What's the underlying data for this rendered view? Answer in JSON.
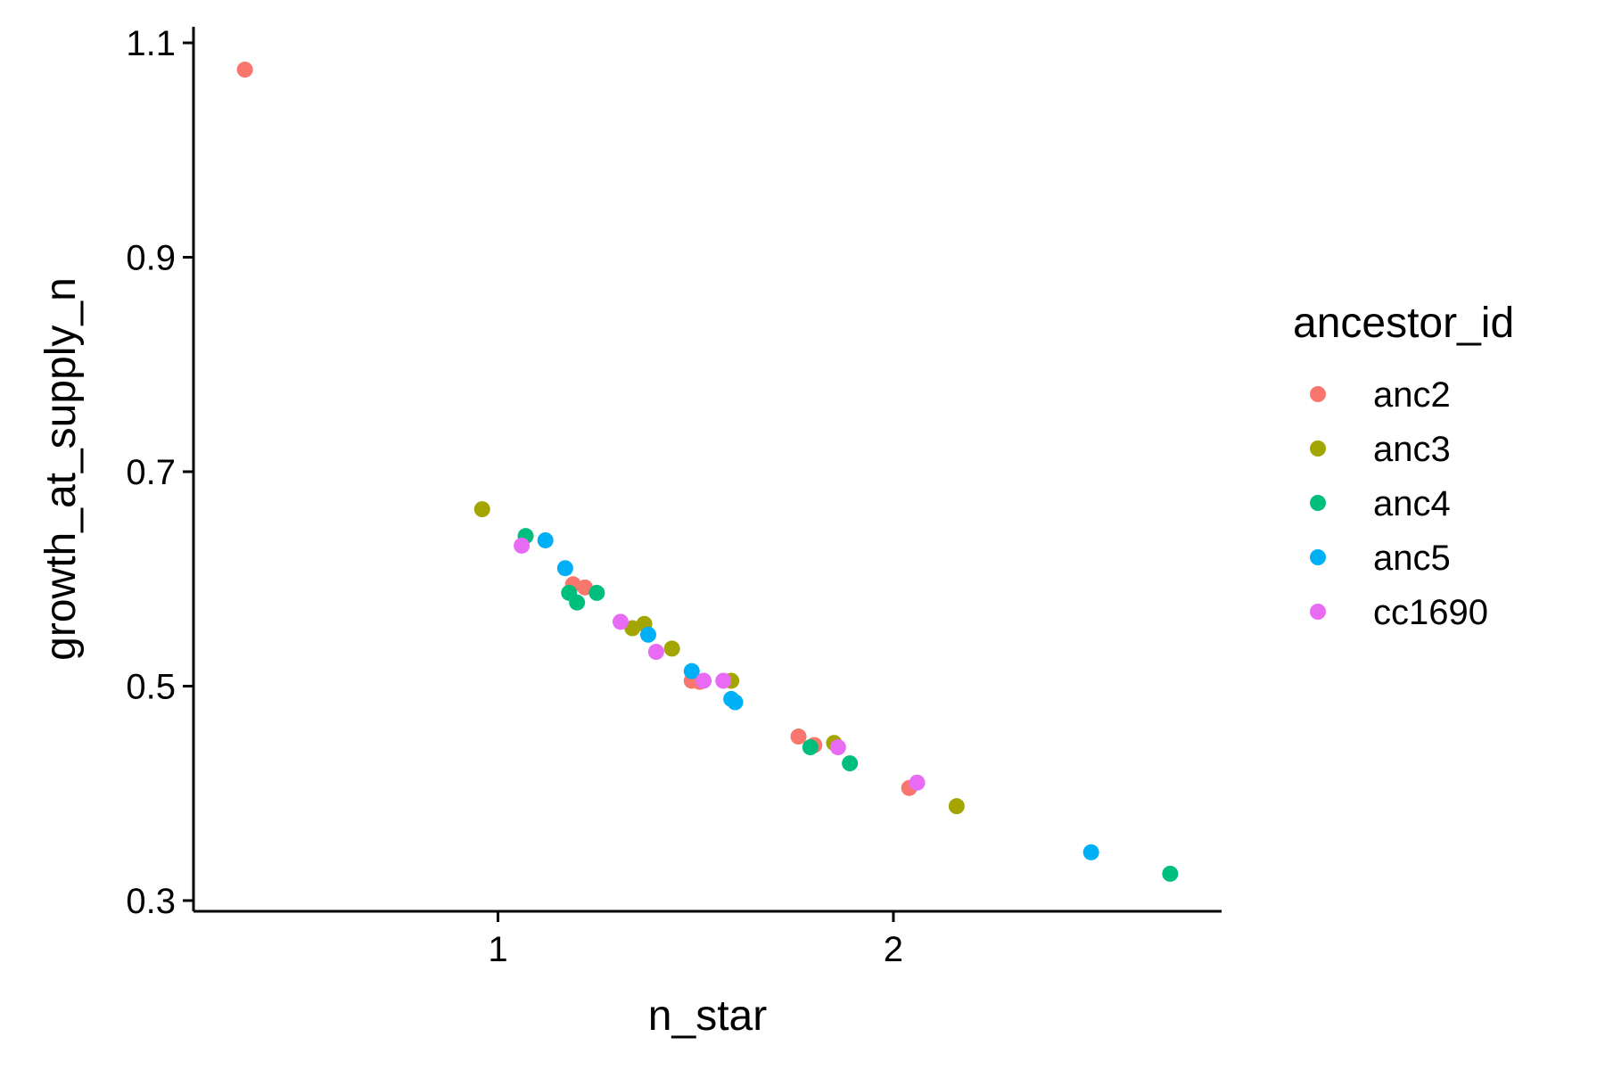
{
  "chart_data": {
    "type": "scatter",
    "title": "",
    "xlabel": "n_star",
    "ylabel": "growth_at_supply_n",
    "xlim": [
      0.23,
      2.83
    ],
    "ylim": [
      0.29,
      1.115
    ],
    "xticks": [
      1,
      2
    ],
    "xtick_labels": [
      "1",
      "2"
    ],
    "yticks": [
      0.3,
      0.5,
      0.7,
      0.9,
      1.1
    ],
    "ytick_labels": [
      "0.3",
      "0.5",
      "0.7",
      "0.9",
      "1.1"
    ],
    "grid": false,
    "legend": {
      "title": "ancestor_id",
      "position": "right"
    },
    "series": [
      {
        "name": "anc2",
        "color": "#F8766D",
        "points": [
          [
            0.36,
            1.075
          ],
          [
            1.19,
            0.595
          ],
          [
            1.22,
            0.592
          ],
          [
            1.49,
            0.505
          ],
          [
            1.51,
            0.504
          ],
          [
            1.76,
            0.453
          ],
          [
            1.8,
            0.445
          ],
          [
            2.04,
            0.405
          ]
        ]
      },
      {
        "name": "anc3",
        "color": "#A3A500",
        "points": [
          [
            0.96,
            0.665
          ],
          [
            1.34,
            0.554
          ],
          [
            1.37,
            0.558
          ],
          [
            1.44,
            0.535
          ],
          [
            1.59,
            0.505
          ],
          [
            1.85,
            0.447
          ],
          [
            2.16,
            0.388
          ]
        ]
      },
      {
        "name": "anc4",
        "color": "#00BF7D",
        "points": [
          [
            1.07,
            0.64
          ],
          [
            1.18,
            0.587
          ],
          [
            1.2,
            0.578
          ],
          [
            1.25,
            0.587
          ],
          [
            1.79,
            0.443
          ],
          [
            1.89,
            0.428
          ],
          [
            2.7,
            0.325
          ]
        ]
      },
      {
        "name": "anc5",
        "color": "#00B0F6",
        "points": [
          [
            1.12,
            0.636
          ],
          [
            1.17,
            0.61
          ],
          [
            1.38,
            0.548
          ],
          [
            1.49,
            0.514
          ],
          [
            1.59,
            0.488
          ],
          [
            1.6,
            0.485
          ],
          [
            2.5,
            0.345
          ]
        ]
      },
      {
        "name": "cc1690",
        "color": "#E76BF3",
        "points": [
          [
            1.06,
            0.631
          ],
          [
            1.31,
            0.56
          ],
          [
            1.4,
            0.532
          ],
          [
            1.52,
            0.505
          ],
          [
            1.57,
            0.505
          ],
          [
            1.86,
            0.443
          ],
          [
            2.06,
            0.41
          ]
        ]
      }
    ]
  }
}
